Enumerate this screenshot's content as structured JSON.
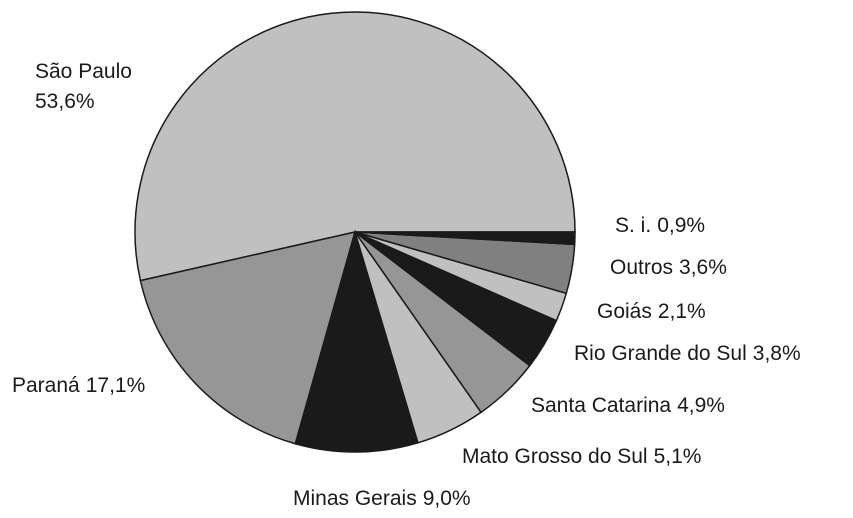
{
  "chart_data": {
    "type": "pie",
    "categories": [
      "São Paulo",
      "Paraná",
      "Minas Gerais",
      "Mato Grosso do Sul",
      "Santa Catarina",
      "Rio Grande do Sul",
      "Goiás",
      "Outros",
      "S. i."
    ],
    "values": [
      53.6,
      17.1,
      9.0,
      5.1,
      4.9,
      3.8,
      2.1,
      3.6,
      0.9
    ],
    "value_labels": [
      "53,6%",
      "17,1%",
      "9,0%",
      "5,1%",
      "4,9%",
      "3,8%",
      "2,1%",
      "3,6%",
      "0,9%"
    ],
    "colors": [
      "#c0c0c0",
      "#969696",
      "#1a1a1a",
      "#c0c0c0",
      "#969696",
      "#1a1a1a",
      "#c0c0c0",
      "#808080",
      "#1a1a1a"
    ]
  }
}
